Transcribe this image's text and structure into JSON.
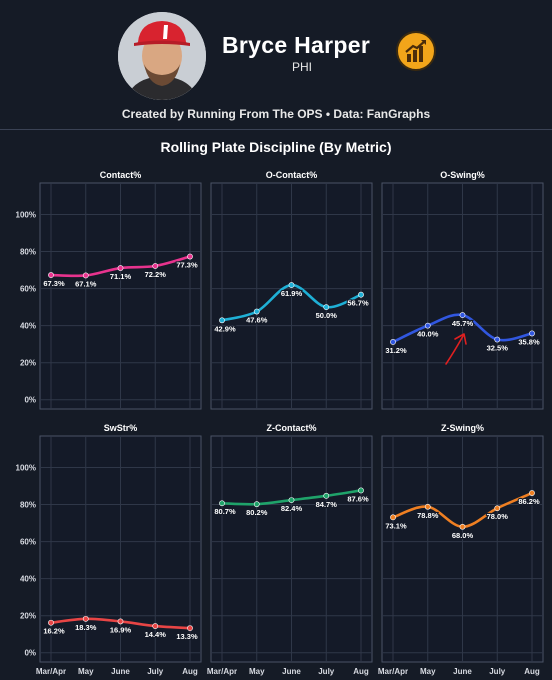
{
  "header": {
    "player_name": "Bryce Harper",
    "team": "PHI",
    "credit": "Created by Running From The OPS • Data: FanGraphs",
    "avatar_icon": "player-headshot-icon",
    "badge_icon": "growth-chart-badge-icon"
  },
  "main_title": "Rolling Plate Discipline (By Metric)",
  "chart_data": [
    {
      "type": "line",
      "title": "Contact%",
      "categories": [
        "Mar/Apr",
        "May",
        "June",
        "July",
        "Aug"
      ],
      "values": [
        67.3,
        67.1,
        71.1,
        72.2,
        77.3
      ],
      "labels": [
        "67.3%",
        "67.1%",
        "71.1%",
        "72.2%",
        "77.3%"
      ],
      "color": "#e8338e",
      "ylim": [
        -5,
        117
      ],
      "yticks": [
        "0%",
        "20%",
        "40%",
        "60%",
        "80%",
        "100%"
      ],
      "grid": true
    },
    {
      "type": "line",
      "title": "O-Contact%",
      "categories": [
        "Mar/Apr",
        "May",
        "June",
        "July",
        "Aug"
      ],
      "values": [
        42.9,
        47.6,
        61.9,
        50.0,
        56.7
      ],
      "labels": [
        "42.9%",
        "47.6%",
        "61.9%",
        "50.0%",
        "56.7%"
      ],
      "color": "#1fb0d6",
      "ylim": [
        -5,
        117
      ],
      "grid": true
    },
    {
      "type": "line",
      "title": "O-Swing%",
      "categories": [
        "Mar/Apr",
        "May",
        "June",
        "July",
        "Aug"
      ],
      "values": [
        31.2,
        40.0,
        45.7,
        32.5,
        35.8
      ],
      "labels": [
        "31.2%",
        "40.0%",
        "45.7%",
        "32.5%",
        "35.8%"
      ],
      "color": "#3157e0",
      "ylim": [
        -5,
        117
      ],
      "grid": true,
      "annotation": "red-hand-drawn-arrow"
    },
    {
      "type": "line",
      "title": "SwStr%",
      "categories": [
        "Mar/Apr",
        "May",
        "June",
        "July",
        "Aug"
      ],
      "values": [
        16.2,
        18.3,
        16.9,
        14.4,
        13.3
      ],
      "labels": [
        "16.2%",
        "18.3%",
        "16.9%",
        "14.4%",
        "13.3%"
      ],
      "color": "#e84545",
      "ylim": [
        -5,
        117
      ],
      "yticks": [
        "0%",
        "20%",
        "40%",
        "60%",
        "80%",
        "100%"
      ],
      "xticks": [
        "Mar/Apr",
        "May",
        "June",
        "July",
        "Aug"
      ],
      "grid": true
    },
    {
      "type": "line",
      "title": "Z-Contact%",
      "categories": [
        "Mar/Apr",
        "May",
        "June",
        "July",
        "Aug"
      ],
      "values": [
        80.7,
        80.2,
        82.4,
        84.7,
        87.6
      ],
      "labels": [
        "80.7%",
        "80.2%",
        "82.4%",
        "84.7%",
        "87.6%"
      ],
      "color": "#1fa36a",
      "ylim": [
        -5,
        117
      ],
      "xticks": [
        "Mar/Apr",
        "May",
        "June",
        "July",
        "Aug"
      ],
      "grid": true
    },
    {
      "type": "line",
      "title": "Z-Swing%",
      "categories": [
        "Mar/Apr",
        "May",
        "June",
        "July",
        "Aug"
      ],
      "values": [
        73.1,
        78.8,
        68.0,
        78.0,
        86.2
      ],
      "labels": [
        "73.1%",
        "78.8%",
        "68.0%",
        "78.0%",
        "86.2%"
      ],
      "color": "#ef7f22",
      "ylim": [
        -5,
        117
      ],
      "xticks": [
        "Mar/Apr",
        "May",
        "June",
        "July",
        "Aug"
      ],
      "grid": true
    }
  ]
}
